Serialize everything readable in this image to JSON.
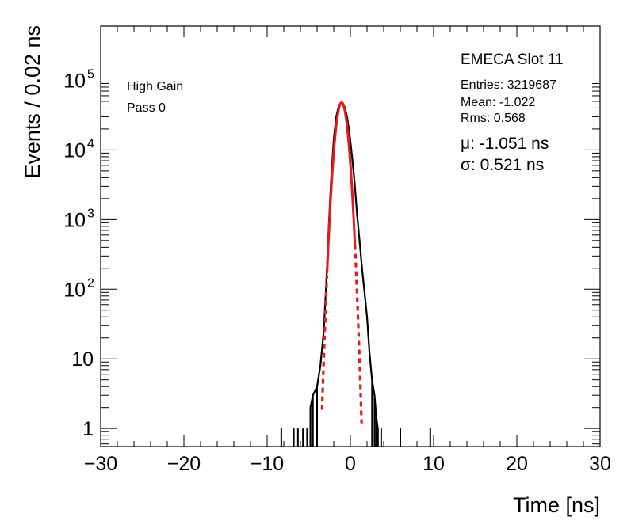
{
  "chart_data": {
    "type": "histogram",
    "xlabel": "Time [ns]",
    "ylabel": "Events / 0.02 ns",
    "xlim": [
      -30,
      30
    ],
    "ylim": [
      0.55,
      600000
    ],
    "y_scale": "log",
    "x_ticks": [
      {
        "value": -30,
        "label": "−30"
      },
      {
        "value": -20,
        "label": "−20"
      },
      {
        "value": -10,
        "label": "−10"
      },
      {
        "value": 0,
        "label": "0"
      },
      {
        "value": 10,
        "label": "10"
      },
      {
        "value": 20,
        "label": "20"
      },
      {
        "value": 30,
        "label": "30"
      }
    ],
    "y_ticks": [
      {
        "value": 1,
        "base": "1",
        "exp": ""
      },
      {
        "value": 10,
        "base": "10",
        "exp": ""
      },
      {
        "value": 100,
        "base": "10",
        "exp": "2"
      },
      {
        "value": 1000,
        "base": "10",
        "exp": "3"
      },
      {
        "value": 10000,
        "base": "10",
        "exp": "4"
      },
      {
        "value": 100000,
        "base": "10",
        "exp": "5"
      }
    ],
    "annotations": {
      "gain": "High Gain",
      "pass": "Pass 0",
      "title": "EMECA Slot 11",
      "entries": "Entries: 3219687",
      "mean": "Mean: -1.022",
      "rms": "Rms: 0.568",
      "mu": "μ: -1.051 ns",
      "sigma": "σ: 0.521 ns"
    },
    "histogram_core": {
      "x": [
        -4.8,
        -4.5,
        -4.0,
        -3.6,
        -3.2,
        -2.9,
        -2.6,
        -2.3,
        -2.0,
        -1.7,
        -1.4,
        -1.2,
        -1.05,
        -0.9,
        -0.7,
        -0.4,
        -0.1,
        0.2,
        0.5,
        0.8,
        1.1,
        1.4,
        1.7,
        2.0,
        2.3,
        2.6,
        2.9,
        3.1,
        3.3
      ],
      "y": [
        2,
        3,
        4,
        8,
        25,
        120,
        800,
        4000,
        14000,
        30000,
        43000,
        47000,
        48000,
        47000,
        42000,
        30000,
        17000,
        8000,
        3500,
        1200,
        500,
        200,
        90,
        40,
        12,
        5,
        3,
        1.5,
        1
      ]
    },
    "histogram_outliers": [
      {
        "x": -8.3,
        "y": 1
      },
      {
        "x": -6.8,
        "y": 1
      },
      {
        "x": -6.3,
        "y": 1
      },
      {
        "x": -5.7,
        "y": 1
      },
      {
        "x": -5.2,
        "y": 1
      },
      {
        "x": 3.7,
        "y": 1
      },
      {
        "x": 6.0,
        "y": 1
      },
      {
        "x": 9.6,
        "y": 1
      }
    ],
    "fit": {
      "type": "gaussian",
      "mu": -1.051,
      "sigma": 0.521,
      "amplitude": 48000,
      "color": "#e8191c"
    },
    "colors": {
      "histogram": "#000000",
      "fit": "#e8191c"
    }
  }
}
